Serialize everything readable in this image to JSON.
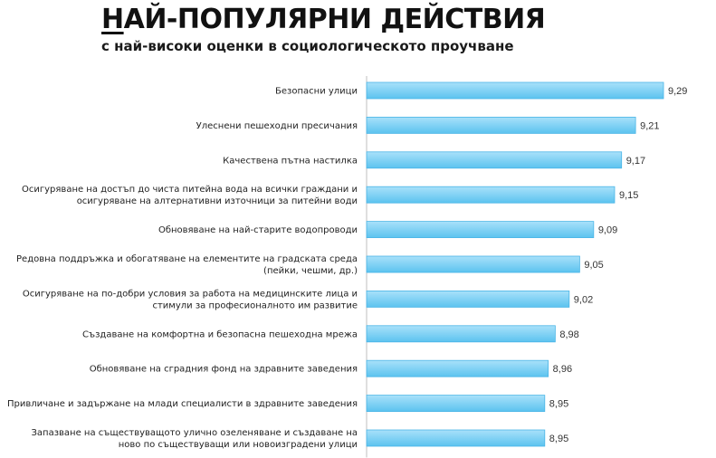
{
  "header": {
    "title_first": "Н",
    "title_rest": "АЙ-ПОПУЛЯРНИ ДЕЙСТВИЯ",
    "subtitle": "с най-високи оценки в социологическото проучване"
  },
  "chart_data": {
    "type": "bar",
    "orientation": "horizontal",
    "title": "НАЙ-ПОПУЛЯРНИ ДЕЙСТВИЯ",
    "subtitle": "с най-високи оценки в социологическото проучване",
    "categories": [
      [
        "Безопасни улици"
      ],
      [
        "Улеснени пешеходни пресичания"
      ],
      [
        "Качествена пътна настилка"
      ],
      [
        "Осигуряване на достъп до чиста питейна вода на всички граждани и",
        "осигуряване на алтернативни източници за питейни води"
      ],
      [
        "Обновяване на най-старите водопроводи"
      ],
      [
        "Редовна поддръжка и обогатяване на елементите на градската среда",
        "(пейки, чешми, др.)"
      ],
      [
        "Осигуряване на по-добри условия за работа на медицинските лица и",
        "стимули за професионалното им развитие"
      ],
      [
        "Създаване на комфортна и безопасна пешеходна мрежа"
      ],
      [
        "Обновяване на сградния фонд на здравните заведения"
      ],
      [
        "Привличане и задържане на млади специалисти в здравните заведения"
      ],
      [
        "Запазване на съществуващото улично озеленяване и създаване на",
        "ново по съществуващи или новоизградени улици"
      ]
    ],
    "values": [
      9.29,
      9.21,
      9.17,
      9.15,
      9.09,
      9.05,
      9.02,
      8.98,
      8.96,
      8.95,
      8.95
    ],
    "value_labels": [
      "9,29",
      "9,21",
      "9,17",
      "9,15",
      "9,09",
      "9,05",
      "9,02",
      "8,98",
      "8,96",
      "8,95",
      "8,95"
    ],
    "xlim": [
      8.44,
      9.29
    ],
    "grid": false,
    "legend": "none",
    "colors": {
      "bar_top": "#a9e1fa",
      "bar_bottom": "#5cc3ef",
      "bar_edge": "#4ab5e6",
      "axis": "#bfbfbf"
    }
  }
}
